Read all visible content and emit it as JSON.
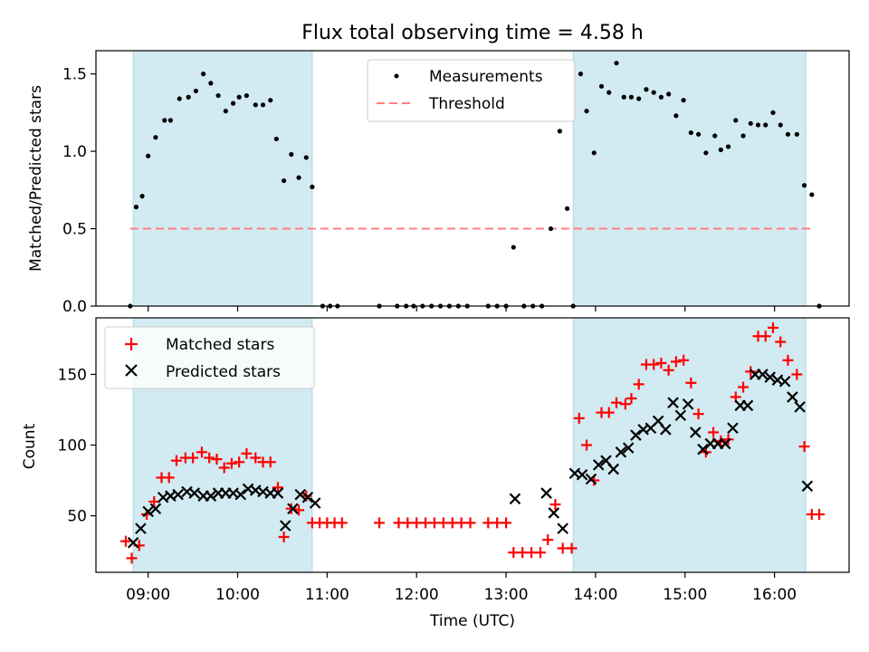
{
  "chart_data": [
    {
      "type": "scatter",
      "title": "Flux total observing time = 4.58 h",
      "xlabel": "",
      "ylabel": "Matched/Predicted stars",
      "xlim": [
        "08:25",
        "16:50"
      ],
      "ylim": [
        0,
        1.65
      ],
      "yticks": [
        0,
        0.5,
        1.0,
        1.5
      ],
      "ytick_labels": [
        "0.0",
        "0.5",
        "1.0",
        "1.5"
      ],
      "shaded_spans": [
        [
          "08:50",
          "10:50"
        ],
        [
          "13:45",
          "16:21"
        ]
      ],
      "legend": {
        "position": "top-center",
        "entries": [
          "Measurements",
          "Threshold"
        ]
      },
      "threshold": {
        "name": "Threshold",
        "y": 0.5,
        "x_range": [
          "08:48",
          "16:25"
        ],
        "color": "#ff7f7f"
      },
      "series": [
        {
          "name": "Measurements",
          "color": "#000000",
          "points": [
            [
              "08:48",
              0.0
            ],
            [
              "08:52",
              0.64
            ],
            [
              "08:56",
              0.71
            ],
            [
              "09:00",
              0.97
            ],
            [
              "09:05",
              1.09
            ],
            [
              "09:11",
              1.2
            ],
            [
              "09:15",
              1.2
            ],
            [
              "09:21",
              1.34
            ],
            [
              "09:27",
              1.35
            ],
            [
              "09:32",
              1.39
            ],
            [
              "09:37",
              1.5
            ],
            [
              "09:42",
              1.44
            ],
            [
              "09:47",
              1.36
            ],
            [
              "09:52",
              1.26
            ],
            [
              "09:57",
              1.31
            ],
            [
              "10:01",
              1.35
            ],
            [
              "10:06",
              1.36
            ],
            [
              "10:12",
              1.3
            ],
            [
              "10:17",
              1.3
            ],
            [
              "10:22",
              1.33
            ],
            [
              "10:26",
              1.08
            ],
            [
              "10:31",
              0.81
            ],
            [
              "10:36",
              0.98
            ],
            [
              "10:41",
              0.83
            ],
            [
              "10:46",
              0.96
            ],
            [
              "10:50",
              0.77
            ],
            [
              "10:57",
              0.0
            ],
            [
              "11:02",
              0.0
            ],
            [
              "11:07",
              0.0
            ],
            [
              "11:35",
              0.0
            ],
            [
              "11:47",
              0.0
            ],
            [
              "11:53",
              0.0
            ],
            [
              "11:58",
              0.0
            ],
            [
              "12:04",
              0.0
            ],
            [
              "12:10",
              0.0
            ],
            [
              "12:16",
              0.0
            ],
            [
              "12:22",
              0.0
            ],
            [
              "12:28",
              0.0
            ],
            [
              "12:34",
              0.0
            ],
            [
              "12:48",
              0.0
            ],
            [
              "12:54",
              0.0
            ],
            [
              "13:00",
              0.0
            ],
            [
              "13:05",
              0.38
            ],
            [
              "13:12",
              0.0
            ],
            [
              "13:18",
              0.0
            ],
            [
              "13:24",
              0.0
            ],
            [
              "13:30",
              0.5
            ],
            [
              "13:36",
              1.13
            ],
            [
              "13:41",
              0.63
            ],
            [
              "13:45",
              0.0
            ],
            [
              "13:50",
              1.5
            ],
            [
              "13:54",
              1.26
            ],
            [
              "13:59",
              0.99
            ],
            [
              "14:04",
              1.42
            ],
            [
              "14:09",
              1.38
            ],
            [
              "14:14",
              1.57
            ],
            [
              "14:19",
              1.35
            ],
            [
              "14:24",
              1.35
            ],
            [
              "14:29",
              1.34
            ],
            [
              "14:34",
              1.4
            ],
            [
              "14:39",
              1.38
            ],
            [
              "14:44",
              1.35
            ],
            [
              "14:49",
              1.37
            ],
            [
              "14:54",
              1.23
            ],
            [
              "14:59",
              1.33
            ],
            [
              "15:04",
              1.12
            ],
            [
              "15:09",
              1.11
            ],
            [
              "15:14",
              0.99
            ],
            [
              "15:20",
              1.1
            ],
            [
              "15:24",
              1.01
            ],
            [
              "15:29",
              1.03
            ],
            [
              "15:34",
              1.2
            ],
            [
              "15:39",
              1.1
            ],
            [
              "15:44",
              1.18
            ],
            [
              "15:49",
              1.17
            ],
            [
              "15:54",
              1.17
            ],
            [
              "15:59",
              1.25
            ],
            [
              "16:04",
              1.17
            ],
            [
              "16:09",
              1.11
            ],
            [
              "16:15",
              1.11
            ],
            [
              "16:20",
              0.78
            ],
            [
              "16:25",
              0.72
            ],
            [
              "16:30",
              0.0
            ]
          ]
        }
      ]
    },
    {
      "type": "scatter",
      "title": "",
      "xlabel": "Time (UTC)",
      "ylabel": "Count",
      "xlim": [
        "08:25",
        "16:50"
      ],
      "ylim": [
        10,
        190
      ],
      "xticks": [
        "09:00",
        "10:00",
        "11:00",
        "12:00",
        "13:00",
        "14:00",
        "15:00",
        "16:00"
      ],
      "yticks": [
        50,
        100,
        150
      ],
      "ytick_labels": [
        "50",
        "100",
        "150"
      ],
      "shaded_spans": [
        [
          "08:50",
          "10:50"
        ],
        [
          "13:45",
          "16:21"
        ]
      ],
      "legend": {
        "position": "top-left",
        "entries": [
          "Matched stars",
          "Predicted stars"
        ]
      },
      "series": [
        {
          "name": "Matched stars",
          "marker": "plus",
          "color": "#ff0000",
          "points": [
            [
              "08:45",
              32
            ],
            [
              "08:49",
              20
            ],
            [
              "08:54",
              29
            ],
            [
              "08:59",
              51
            ],
            [
              "09:04",
              60
            ],
            [
              "09:09",
              77
            ],
            [
              "09:14",
              77
            ],
            [
              "09:19",
              89
            ],
            [
              "09:25",
              91
            ],
            [
              "09:30",
              91
            ],
            [
              "09:36",
              95
            ],
            [
              "09:41",
              91
            ],
            [
              "09:46",
              90
            ],
            [
              "09:51",
              84
            ],
            [
              "09:56",
              87
            ],
            [
              "10:01",
              88
            ],
            [
              "10:06",
              94
            ],
            [
              "10:12",
              91
            ],
            [
              "10:17",
              88
            ],
            [
              "10:22",
              88
            ],
            [
              "10:27",
              70
            ],
            [
              "10:31",
              35
            ],
            [
              "10:36",
              55
            ],
            [
              "10:41",
              54
            ],
            [
              "10:46",
              64
            ],
            [
              "10:50",
              45
            ],
            [
              "10:55",
              45
            ],
            [
              "11:00",
              45
            ],
            [
              "11:05",
              45
            ],
            [
              "11:10",
              45
            ],
            [
              "11:35",
              45
            ],
            [
              "11:48",
              45
            ],
            [
              "11:54",
              45
            ],
            [
              "12:00",
              45
            ],
            [
              "12:06",
              45
            ],
            [
              "12:12",
              45
            ],
            [
              "12:18",
              45
            ],
            [
              "12:24",
              45
            ],
            [
              "12:30",
              45
            ],
            [
              "12:36",
              45
            ],
            [
              "12:48",
              45
            ],
            [
              "12:54",
              45
            ],
            [
              "13:00",
              45
            ],
            [
              "13:05",
              24
            ],
            [
              "13:11",
              24
            ],
            [
              "13:17",
              24
            ],
            [
              "13:23",
              24
            ],
            [
              "13:28",
              33
            ],
            [
              "13:33",
              58
            ],
            [
              "13:38",
              27
            ],
            [
              "13:44",
              27
            ],
            [
              "13:49",
              119
            ],
            [
              "13:54",
              100
            ],
            [
              "13:59",
              75
            ],
            [
              "14:04",
              123
            ],
            [
              "14:09",
              123
            ],
            [
              "14:14",
              130
            ],
            [
              "14:20",
              129
            ],
            [
              "14:24",
              133
            ],
            [
              "14:29",
              143
            ],
            [
              "14:34",
              157
            ],
            [
              "14:39",
              157
            ],
            [
              "14:44",
              158
            ],
            [
              "14:49",
              153
            ],
            [
              "14:54",
              159
            ],
            [
              "14:59",
              160
            ],
            [
              "15:04",
              144
            ],
            [
              "15:09",
              122
            ],
            [
              "15:14",
              95
            ],
            [
              "15:19",
              109
            ],
            [
              "15:24",
              103
            ],
            [
              "15:29",
              104
            ],
            [
              "15:34",
              134
            ],
            [
              "15:39",
              141
            ],
            [
              "15:44",
              152
            ],
            [
              "15:49",
              177
            ],
            [
              "15:54",
              177
            ],
            [
              "15:59",
              183
            ],
            [
              "16:04",
              173
            ],
            [
              "16:09",
              160
            ],
            [
              "16:15",
              150
            ],
            [
              "16:20",
              99
            ],
            [
              "16:25",
              51
            ],
            [
              "16:30",
              51
            ]
          ]
        },
        {
          "name": "Predicted stars",
          "marker": "x",
          "color": "#000000",
          "points": [
            [
              "08:50",
              31
            ],
            [
              "08:55",
              41
            ],
            [
              "09:00",
              53
            ],
            [
              "09:05",
              55
            ],
            [
              "09:10",
              63
            ],
            [
              "09:15",
              64
            ],
            [
              "09:20",
              65
            ],
            [
              "09:26",
              67
            ],
            [
              "09:31",
              66
            ],
            [
              "09:37",
              64
            ],
            [
              "09:42",
              64
            ],
            [
              "09:47",
              66
            ],
            [
              "09:52",
              66
            ],
            [
              "09:57",
              66
            ],
            [
              "10:02",
              65
            ],
            [
              "10:07",
              69
            ],
            [
              "10:12",
              68
            ],
            [
              "10:17",
              67
            ],
            [
              "10:22",
              66
            ],
            [
              "10:27",
              66
            ],
            [
              "10:32",
              43
            ],
            [
              "10:37",
              55
            ],
            [
              "10:42",
              65
            ],
            [
              "10:47",
              63
            ],
            [
              "10:52",
              59
            ],
            [
              "13:06",
              62
            ],
            [
              "13:27",
              66
            ],
            [
              "13:32",
              52
            ],
            [
              "13:38",
              41
            ],
            [
              "13:46",
              80
            ],
            [
              "13:51",
              79
            ],
            [
              "13:57",
              76
            ],
            [
              "14:02",
              86
            ],
            [
              "14:07",
              89
            ],
            [
              "14:12",
              83
            ],
            [
              "14:17",
              95
            ],
            [
              "14:22",
              98
            ],
            [
              "14:27",
              107
            ],
            [
              "14:32",
              111
            ],
            [
              "14:37",
              112
            ],
            [
              "14:42",
              117
            ],
            [
              "14:47",
              111
            ],
            [
              "14:52",
              130
            ],
            [
              "14:57",
              121
            ],
            [
              "15:02",
              129
            ],
            [
              "15:07",
              109
            ],
            [
              "15:12",
              97
            ],
            [
              "15:17",
              101
            ],
            [
              "15:22",
              101
            ],
            [
              "15:27",
              101
            ],
            [
              "15:32",
              112
            ],
            [
              "15:37",
              128
            ],
            [
              "15:42",
              128
            ],
            [
              "15:47",
              150
            ],
            [
              "15:52",
              150
            ],
            [
              "15:57",
              148
            ],
            [
              "16:02",
              146
            ],
            [
              "16:07",
              145
            ],
            [
              "16:12",
              134
            ],
            [
              "16:17",
              127
            ],
            [
              "16:22",
              71
            ]
          ]
        }
      ]
    }
  ],
  "colors": {
    "span_fill": "#add8e6",
    "threshold": "#ff7f7f",
    "matched": "#ff0000",
    "predicted": "#000000",
    "measurement": "#000000"
  }
}
